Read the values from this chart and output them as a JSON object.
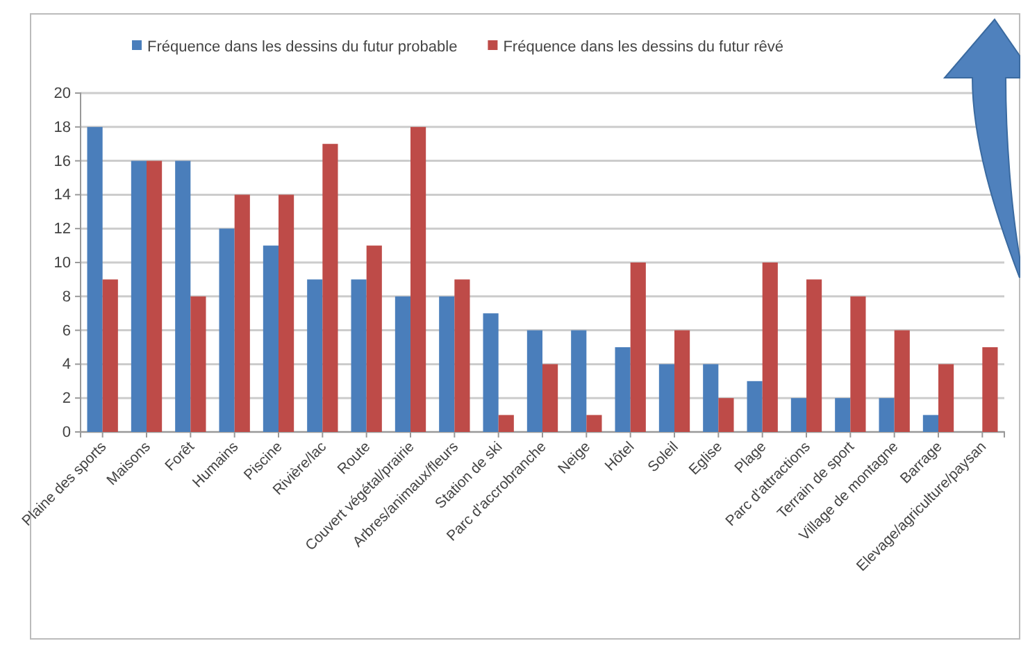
{
  "chart_data": {
    "type": "bar",
    "categories": [
      "Plaine des sports",
      "Maisons",
      "Forêt",
      "Humains",
      "Piscine",
      "Rivière/lac",
      "Route",
      "Couvert végétal/prairie",
      "Arbres/animaux/fleurs",
      "Station de ski",
      "Parc d'accrobranche",
      "Neige",
      "Hôtel",
      "Soleil",
      "Eglise",
      "Plage",
      "Parc d'attractions",
      "Terrain de sport",
      "Village de montagne",
      "Barrage",
      "Elevage/agriculture/paysan"
    ],
    "series": [
      {
        "name": "Fréquence dans les dessins du futur probable",
        "color": "#4a7ebb",
        "values": [
          18,
          16,
          16,
          12,
          11,
          9,
          9,
          8,
          8,
          7,
          6,
          6,
          5,
          4,
          4,
          3,
          2,
          2,
          2,
          1,
          0
        ]
      },
      {
        "name": "Fréquence dans les dessins du futur rêvé",
        "color": "#be4b48",
        "values": [
          9,
          16,
          8,
          14,
          14,
          17,
          11,
          18,
          9,
          1,
          4,
          1,
          10,
          6,
          2,
          10,
          9,
          8,
          6,
          4,
          5
        ]
      }
    ],
    "ylim": [
      0,
      20
    ],
    "yticks": [
      0,
      2,
      4,
      6,
      8,
      10,
      12,
      14,
      16,
      18,
      20
    ],
    "grid": "y",
    "legend": "top"
  }
}
